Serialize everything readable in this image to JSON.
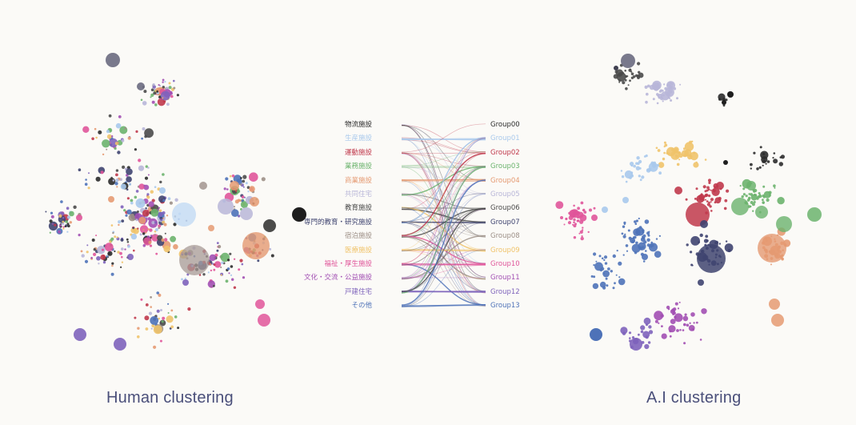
{
  "captions": {
    "left": "Human clustering",
    "right": "A.I clustering"
  },
  "categories": [
    {
      "label": "物流施設",
      "color": "#2b2b2b"
    },
    {
      "label": "生産施設",
      "color": "#a9c9ec"
    },
    {
      "label": "運動施設",
      "color": "#c0384b"
    },
    {
      "label": "業務施設",
      "color": "#6bb36d"
    },
    {
      "label": "商業施設",
      "color": "#e59a72"
    },
    {
      "label": "共同住宅",
      "color": "#b8b6d8"
    },
    {
      "label": "教育施設",
      "color": "#4a4a4a"
    },
    {
      "label": "専門的教育・研究施設",
      "color": "#3f4470"
    },
    {
      "label": "宿泊施設",
      "color": "#9c8f86"
    },
    {
      "label": "医療施設",
      "color": "#f0c36a"
    },
    {
      "label": "福祉・厚生施設",
      "color": "#e0559a"
    },
    {
      "label": "文化・交流・公益施設",
      "color": "#a24fb3"
    },
    {
      "label": "戸建住宅",
      "color": "#7e63bb"
    },
    {
      "label": "その他",
      "color": "#4e72b8"
    }
  ],
  "groups": [
    {
      "label": "Group00",
      "color": "#2b2b2b"
    },
    {
      "label": "Group01",
      "color": "#a9c9ec"
    },
    {
      "label": "Group02",
      "color": "#c0384b"
    },
    {
      "label": "Group03",
      "color": "#6bb36d"
    },
    {
      "label": "Group04",
      "color": "#e59a72"
    },
    {
      "label": "Group05",
      "color": "#b8b6d8"
    },
    {
      "label": "Group06",
      "color": "#4a4a4a"
    },
    {
      "label": "Group07",
      "color": "#3f4470"
    },
    {
      "label": "Group08",
      "color": "#9c8f86"
    },
    {
      "label": "Group09",
      "color": "#f0c36a"
    },
    {
      "label": "Group10",
      "color": "#e0559a"
    },
    {
      "label": "Group11",
      "color": "#a24fb3"
    },
    {
      "label": "Group12",
      "color": "#7e63bb"
    },
    {
      "label": "Group13",
      "color": "#4e72b8"
    }
  ]
}
